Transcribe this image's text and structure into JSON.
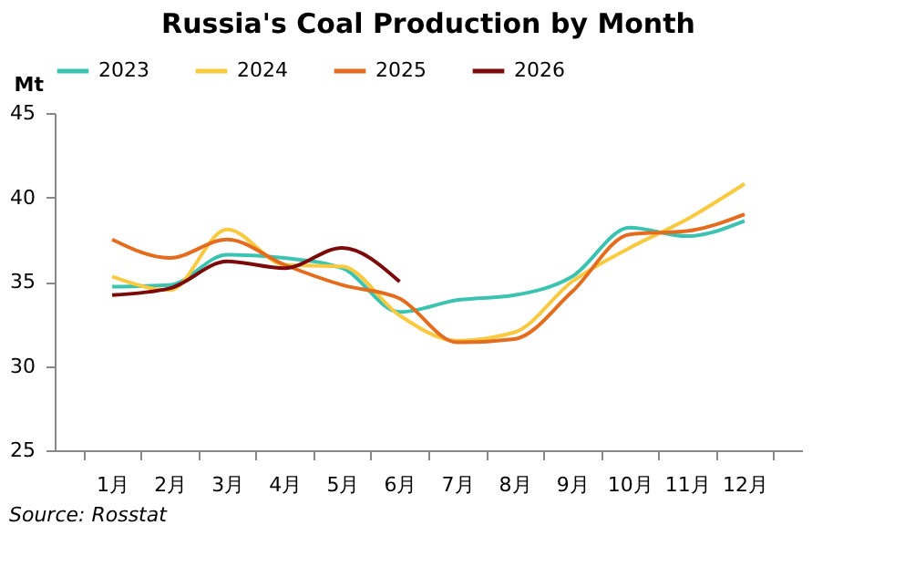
{
  "chart_data": {
    "type": "line",
    "title": "Russia's Coal Production by Month",
    "ylabel": "Mt",
    "categories": [
      "1月",
      "2月",
      "3月",
      "4月",
      "5月",
      "6月",
      "7月",
      "8月",
      "9月",
      "10月",
      "11月",
      "12月"
    ],
    "series": [
      {
        "name": "2023",
        "color": "#3cc2b0",
        "values": [
          34.7,
          34.8,
          36.6,
          36.4,
          35.8,
          33.2,
          33.9,
          34.2,
          35.3,
          38.2,
          37.7,
          38.6
        ]
      },
      {
        "name": "2024",
        "color": "#f9c940",
        "values": [
          35.3,
          34.5,
          38.1,
          36.0,
          35.9,
          33.0,
          31.5,
          32.0,
          35.0,
          37.0,
          38.7,
          40.8
        ]
      },
      {
        "name": "2025",
        "color": "#e36c1f",
        "values": [
          37.5,
          36.4,
          37.5,
          36.0,
          34.8,
          34.0,
          31.4,
          31.6,
          34.4,
          37.8,
          38.0,
          39.0
        ]
      },
      {
        "name": "2026",
        "color": "#7b0a0a",
        "values": [
          34.2,
          34.6,
          36.2,
          35.8,
          37.0,
          35.0,
          null,
          null,
          null,
          null,
          null,
          null
        ]
      }
    ],
    "ylim": [
      25,
      45
    ],
    "yticks": [
      25,
      30,
      35,
      40,
      45
    ],
    "grid": false,
    "legend": "top",
    "line_style": "solid",
    "marker": "none",
    "annotations": [
      "Source: Rosstat"
    ]
  }
}
